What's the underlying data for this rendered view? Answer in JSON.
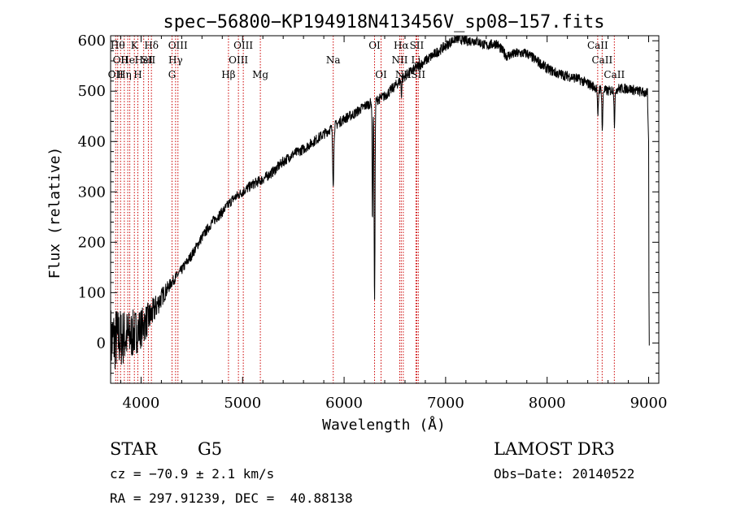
{
  "colors": {
    "foreground": "#000000",
    "background": "#ffffff",
    "line_marker": "#cc0000"
  },
  "chart_data": {
    "type": "line",
    "title": "spec−56800−KP194918N413456V_sp08−157.fits",
    "xlabel": "Wavelength (Å)",
    "ylabel": "Flux (relative)",
    "xlim": [
      3700,
      9100
    ],
    "ylim": [
      -80,
      610
    ],
    "xticks": [
      4000,
      5000,
      6000,
      7000,
      8000,
      9000
    ],
    "yticks": [
      0,
      100,
      200,
      300,
      400,
      500,
      600
    ],
    "series": [
      {
        "name": "flux",
        "continuum": [
          [
            3700,
            5
          ],
          [
            3800,
            10
          ],
          [
            3900,
            15
          ],
          [
            4000,
            30
          ],
          [
            4100,
            55
          ],
          [
            4200,
            90
          ],
          [
            4300,
            120
          ],
          [
            4400,
            145
          ],
          [
            4500,
            175
          ],
          [
            4600,
            210
          ],
          [
            4700,
            240
          ],
          [
            4800,
            260
          ],
          [
            4900,
            285
          ],
          [
            5000,
            300
          ],
          [
            5100,
            315
          ],
          [
            5200,
            325
          ],
          [
            5300,
            340
          ],
          [
            5400,
            360
          ],
          [
            5500,
            375
          ],
          [
            5600,
            385
          ],
          [
            5700,
            400
          ],
          [
            5800,
            415
          ],
          [
            5900,
            430
          ],
          [
            6000,
            445
          ],
          [
            6100,
            455
          ],
          [
            6200,
            470
          ],
          [
            6300,
            480
          ],
          [
            6400,
            490
          ],
          [
            6500,
            510
          ],
          [
            6600,
            530
          ],
          [
            6700,
            545
          ],
          [
            6800,
            560
          ],
          [
            6900,
            575
          ],
          [
            7000,
            590
          ],
          [
            7100,
            605
          ],
          [
            7200,
            600
          ],
          [
            7300,
            600
          ],
          [
            7400,
            590
          ],
          [
            7500,
            595
          ],
          [
            7600,
            570
          ],
          [
            7700,
            575
          ],
          [
            7800,
            575
          ],
          [
            7900,
            560
          ],
          [
            8000,
            545
          ],
          [
            8100,
            535
          ],
          [
            8200,
            530
          ],
          [
            8300,
            525
          ],
          [
            8400,
            515
          ],
          [
            8500,
            505
          ],
          [
            8600,
            500
          ],
          [
            8700,
            505
          ],
          [
            8800,
            505
          ],
          [
            8900,
            500
          ],
          [
            9000,
            495
          ]
        ],
        "absorption": [
          {
            "center": 5893,
            "depth": 110,
            "width": 8
          },
          {
            "center": 6280,
            "depth": 240,
            "width": 5
          },
          {
            "center": 6300,
            "depth": 400,
            "width": 6
          },
          {
            "center": 6565,
            "depth": 30,
            "width": 5
          },
          {
            "center": 8500,
            "depth": 60,
            "width": 6
          },
          {
            "center": 8544,
            "depth": 80,
            "width": 6
          },
          {
            "center": 8664,
            "depth": 70,
            "width": 6
          }
        ],
        "blue_noise_amplitude": 60,
        "red_noise_amplitude": 10,
        "end_drop": [
          [
            8990,
            470
          ],
          [
            9000,
            400
          ],
          [
            9003,
            100
          ],
          [
            9006,
            -5
          ]
        ]
      }
    ],
    "line_markers": [
      {
        "wavelength": 3750,
        "label": "OII",
        "row": 3
      },
      {
        "wavelength": 3770,
        "label": "Hθ",
        "row": 1
      },
      {
        "wavelength": 3798,
        "label": "OII",
        "row": 2
      },
      {
        "wavelength": 3835,
        "label": "Hη",
        "row": 3
      },
      {
        "wavelength": 3869,
        "label": "He",
        "row": 2
      },
      {
        "wavelength": 3889,
        "label": "",
        "row": 0
      },
      {
        "wavelength": 3934,
        "label": "K",
        "row": 1
      },
      {
        "wavelength": 3968,
        "label": "H",
        "row": 3
      },
      {
        "wavelength": 4026,
        "label": "HeI",
        "row": 2
      },
      {
        "wavelength": 4072,
        "label": "SII",
        "row": 2
      },
      {
        "wavelength": 4102,
        "label": "Hδ",
        "row": 1
      },
      {
        "wavelength": 4305,
        "label": "G",
        "row": 3
      },
      {
        "wavelength": 4340,
        "label": "Hγ",
        "row": 2
      },
      {
        "wavelength": 4363,
        "label": "OIII",
        "row": 1
      },
      {
        "wavelength": 4861,
        "label": "Hβ",
        "row": 3
      },
      {
        "wavelength": 4959,
        "label": "OIII",
        "row": 2
      },
      {
        "wavelength": 5007,
        "label": "OIII",
        "row": 1
      },
      {
        "wavelength": 5175,
        "label": "Mg",
        "row": 3
      },
      {
        "wavelength": 5893,
        "label": "Na",
        "row": 2
      },
      {
        "wavelength": 6300,
        "label": "OI",
        "row": 1
      },
      {
        "wavelength": 6364,
        "label": "OI",
        "row": 3
      },
      {
        "wavelength": 6548,
        "label": "NII",
        "row": 2
      },
      {
        "wavelength": 6563,
        "label": "Hα",
        "row": 1
      },
      {
        "wavelength": 6583,
        "label": "NII",
        "row": 3
      },
      {
        "wavelength": 6708,
        "label": "Li",
        "row": 2
      },
      {
        "wavelength": 6716,
        "label": "SII",
        "row": 1
      },
      {
        "wavelength": 6731,
        "label": "SII",
        "row": 3
      },
      {
        "wavelength": 8498,
        "label": "CaII",
        "row": 1
      },
      {
        "wavelength": 8542,
        "label": "CaII",
        "row": 2
      },
      {
        "wavelength": 8662,
        "label": "CaII",
        "row": 3
      }
    ]
  },
  "info": {
    "object_class": "STAR",
    "subclass": "G5",
    "survey": "LAMOST DR3",
    "velocity": "cz = −70.9 ± 2.1 km/s",
    "obs_date": "Obs−Date: 20140522",
    "coords": "RA = 297.91239, DEC =  40.88138"
  }
}
